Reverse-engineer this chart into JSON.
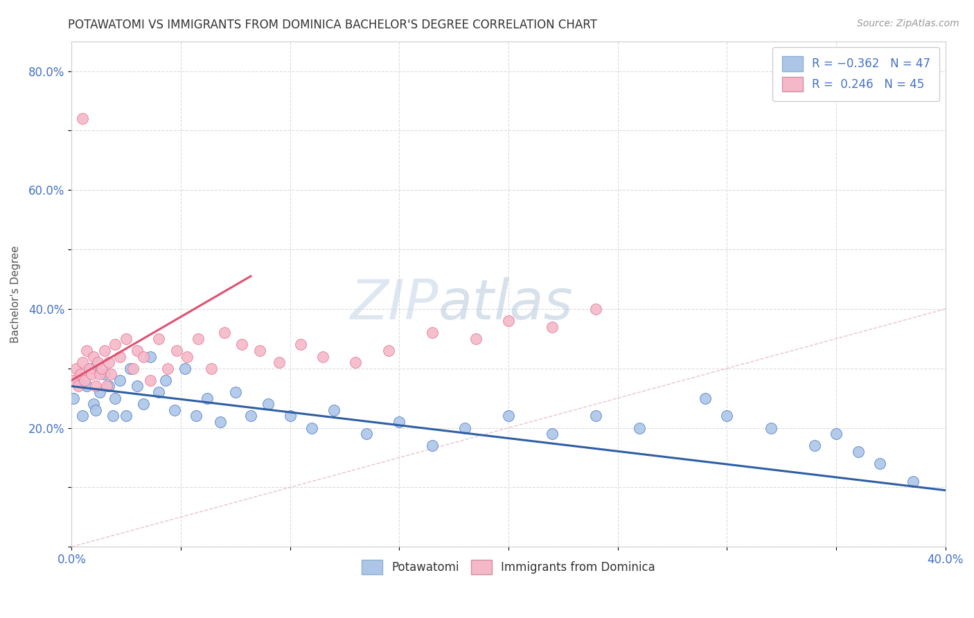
{
  "title": "POTAWATOMI VS IMMIGRANTS FROM DOMINICA BACHELOR'S DEGREE CORRELATION CHART",
  "source": "Source: ZipAtlas.com",
  "ylabel_label": "Bachelor's Degree",
  "xlim": [
    0.0,
    0.4
  ],
  "ylim": [
    0.0,
    0.85
  ],
  "xticks": [
    0.0,
    0.05,
    0.1,
    0.15,
    0.2,
    0.25,
    0.3,
    0.35,
    0.4
  ],
  "xticklabels": [
    "0.0%",
    "",
    "",
    "",
    "",
    "",
    "",
    "",
    "40.0%"
  ],
  "yticks": [
    0.0,
    0.1,
    0.2,
    0.3,
    0.4,
    0.5,
    0.6,
    0.7,
    0.8
  ],
  "yticklabels": [
    "",
    "",
    "20.0%",
    "",
    "40.0%",
    "",
    "60.0%",
    "",
    "80.0%"
  ],
  "color_blue": "#adc6e8",
  "color_pink": "#f5b8c8",
  "edge_blue": "#4472c4",
  "edge_pink": "#e07090",
  "line_blue": "#2e5fa3",
  "line_pink": "#e05070",
  "line_diag_color": "#e8b0c0",
  "watermark_zip": "ZIP",
  "watermark_atlas": "atlas",
  "potawatomi_x": [
    0.001,
    0.003,
    0.005,
    0.007,
    0.009,
    0.01,
    0.011,
    0.013,
    0.015,
    0.017,
    0.019,
    0.02,
    0.022,
    0.025,
    0.027,
    0.03,
    0.033,
    0.036,
    0.04,
    0.043,
    0.047,
    0.052,
    0.057,
    0.062,
    0.068,
    0.075,
    0.082,
    0.09,
    0.1,
    0.11,
    0.12,
    0.135,
    0.15,
    0.165,
    0.18,
    0.2,
    0.22,
    0.24,
    0.26,
    0.29,
    0.3,
    0.32,
    0.34,
    0.35,
    0.36,
    0.37,
    0.385
  ],
  "potawatomi_y": [
    0.25,
    0.28,
    0.22,
    0.27,
    0.3,
    0.24,
    0.23,
    0.26,
    0.29,
    0.27,
    0.22,
    0.25,
    0.28,
    0.22,
    0.3,
    0.27,
    0.24,
    0.32,
    0.26,
    0.28,
    0.23,
    0.3,
    0.22,
    0.25,
    0.21,
    0.26,
    0.22,
    0.24,
    0.22,
    0.2,
    0.23,
    0.19,
    0.21,
    0.17,
    0.2,
    0.22,
    0.19,
    0.22,
    0.2,
    0.25,
    0.22,
    0.2,
    0.17,
    0.19,
    0.16,
    0.14,
    0.11
  ],
  "dominica_x": [
    0.001,
    0.002,
    0.003,
    0.004,
    0.005,
    0.006,
    0.007,
    0.008,
    0.009,
    0.01,
    0.011,
    0.012,
    0.013,
    0.014,
    0.015,
    0.016,
    0.017,
    0.018,
    0.02,
    0.022,
    0.025,
    0.028,
    0.03,
    0.033,
    0.036,
    0.04,
    0.044,
    0.048,
    0.053,
    0.058,
    0.064,
    0.07,
    0.078,
    0.086,
    0.095,
    0.105,
    0.115,
    0.13,
    0.145,
    0.165,
    0.185,
    0.2,
    0.22,
    0.24,
    0.005
  ],
  "dominica_y": [
    0.28,
    0.3,
    0.27,
    0.29,
    0.31,
    0.28,
    0.33,
    0.3,
    0.29,
    0.32,
    0.27,
    0.31,
    0.29,
    0.3,
    0.33,
    0.27,
    0.31,
    0.29,
    0.34,
    0.32,
    0.35,
    0.3,
    0.33,
    0.32,
    0.28,
    0.35,
    0.3,
    0.33,
    0.32,
    0.35,
    0.3,
    0.36,
    0.34,
    0.33,
    0.31,
    0.34,
    0.32,
    0.31,
    0.33,
    0.36,
    0.35,
    0.38,
    0.37,
    0.4,
    0.72
  ],
  "blue_trend_x": [
    0.0,
    0.4
  ],
  "blue_trend_y": [
    0.27,
    0.095
  ],
  "pink_trend_x": [
    0.0,
    0.082
  ],
  "pink_trend_y": [
    0.28,
    0.455
  ]
}
